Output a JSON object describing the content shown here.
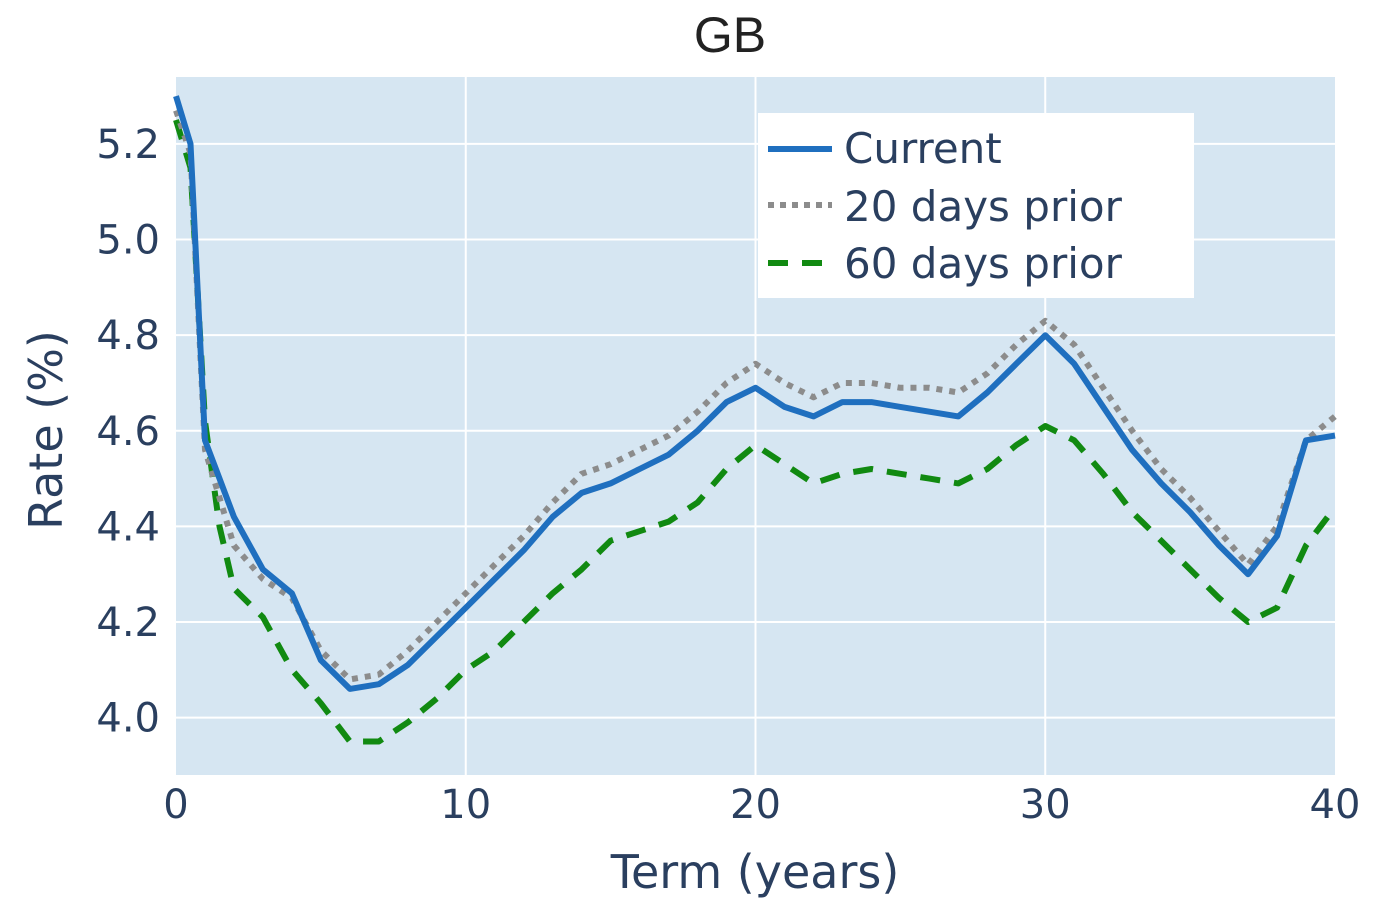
{
  "chart_data": {
    "type": "line",
    "title": "GB",
    "xlabel": "Term (years)",
    "ylabel": "Rate (%)",
    "xlim": [
      0,
      40
    ],
    "ylim": [
      3.88,
      5.34
    ],
    "x_ticks": [
      "0",
      "10",
      "20",
      "30",
      "40"
    ],
    "y_ticks": [
      "4.0",
      "4.2",
      "4.4",
      "4.6",
      "4.8",
      "5.0",
      "5.2"
    ],
    "grid": true,
    "legend_position": "top-right",
    "background_color": "#d6e6f2",
    "series": [
      {
        "name": "Current",
        "color": "#1f6fbf",
        "dash": "solid",
        "x": [
          0,
          0.5,
          1,
          1.5,
          2,
          3,
          4,
          5,
          6,
          7,
          8,
          9,
          10,
          11,
          12,
          13,
          14,
          15,
          16,
          17,
          18,
          19,
          20,
          21,
          22,
          23,
          24,
          25,
          26,
          27,
          28,
          29,
          30,
          31,
          32,
          33,
          34,
          35,
          36,
          37,
          38,
          39,
          40
        ],
        "y": [
          5.3,
          5.2,
          4.58,
          4.5,
          4.42,
          4.31,
          4.26,
          4.12,
          4.06,
          4.07,
          4.11,
          4.17,
          4.23,
          4.29,
          4.35,
          4.42,
          4.47,
          4.49,
          4.52,
          4.55,
          4.6,
          4.66,
          4.69,
          4.65,
          4.63,
          4.66,
          4.66,
          4.65,
          4.64,
          4.63,
          4.68,
          4.74,
          4.8,
          4.74,
          4.65,
          4.56,
          4.49,
          4.43,
          4.36,
          4.3,
          4.38,
          4.58,
          4.59
        ]
      },
      {
        "name": "20 days prior",
        "color": "#8c8c8c",
        "dash": "dot",
        "x": [
          0,
          0.5,
          1,
          1.5,
          2,
          3,
          4,
          5,
          6,
          7,
          8,
          9,
          10,
          11,
          12,
          13,
          14,
          15,
          16,
          17,
          18,
          19,
          20,
          21,
          22,
          23,
          24,
          25,
          26,
          27,
          28,
          29,
          30,
          31,
          32,
          33,
          34,
          35,
          36,
          37,
          38,
          39,
          40
        ],
        "y": [
          5.27,
          5.18,
          4.56,
          4.46,
          4.36,
          4.29,
          4.25,
          4.14,
          4.08,
          4.09,
          4.14,
          4.2,
          4.26,
          4.32,
          4.38,
          4.45,
          4.51,
          4.53,
          4.56,
          4.59,
          4.64,
          4.7,
          4.74,
          4.7,
          4.67,
          4.7,
          4.7,
          4.69,
          4.69,
          4.68,
          4.72,
          4.78,
          4.83,
          4.78,
          4.69,
          4.6,
          4.52,
          4.46,
          4.39,
          4.32,
          4.4,
          4.58,
          4.63
        ]
      },
      {
        "name": "60 days prior",
        "color": "#118a11",
        "dash": "dash",
        "x": [
          0,
          0.5,
          1,
          1.5,
          2,
          3,
          4,
          5,
          6,
          7,
          8,
          9,
          10,
          11,
          12,
          13,
          14,
          15,
          16,
          17,
          18,
          19,
          20,
          21,
          22,
          23,
          24,
          25,
          26,
          27,
          28,
          29,
          30,
          31,
          32,
          33,
          34,
          35,
          36,
          37,
          38,
          39,
          40
        ],
        "y": [
          5.25,
          5.15,
          4.62,
          4.4,
          4.27,
          4.21,
          4.1,
          4.03,
          3.95,
          3.95,
          3.99,
          4.04,
          4.1,
          4.14,
          4.2,
          4.26,
          4.31,
          4.37,
          4.39,
          4.41,
          4.45,
          4.52,
          4.57,
          4.53,
          4.49,
          4.51,
          4.52,
          4.51,
          4.5,
          4.49,
          4.52,
          4.57,
          4.61,
          4.58,
          4.51,
          4.43,
          4.37,
          4.31,
          4.25,
          4.2,
          4.23,
          4.36,
          4.44
        ]
      }
    ]
  }
}
